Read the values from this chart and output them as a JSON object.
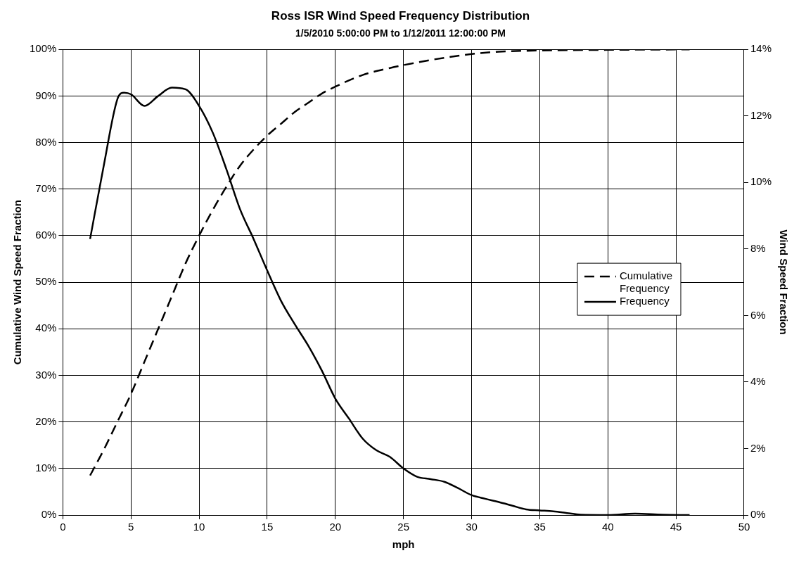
{
  "chart_data": {
    "type": "line",
    "title": "Ross ISR Wind Speed Frequency Distribution",
    "subtitle": "1/5/2010 5:00:00 PM to 1/12/2011 12:00:00 PM",
    "xlabel": "mph",
    "ylabel": "Cumulative Wind Speed Fraction",
    "y2label": "Wind Speed Fraction",
    "xlim": [
      0,
      50
    ],
    "xticks": [
      0,
      5,
      10,
      15,
      20,
      25,
      30,
      35,
      40,
      45,
      50
    ],
    "ylim": [
      0,
      100
    ],
    "yticks": [
      {
        "value": 0,
        "label": "0%"
      },
      {
        "value": 10,
        "label": "10%"
      },
      {
        "value": 20,
        "label": "20%"
      },
      {
        "value": 30,
        "label": "30%"
      },
      {
        "value": 40,
        "label": "40%"
      },
      {
        "value": 50,
        "label": "50%"
      },
      {
        "value": 60,
        "label": "60%"
      },
      {
        "value": 70,
        "label": "70%"
      },
      {
        "value": 80,
        "label": "80%"
      },
      {
        "value": 90,
        "label": "90%"
      },
      {
        "value": 100,
        "label": "100%"
      }
    ],
    "y2lim": [
      0,
      14
    ],
    "y2ticks": [
      {
        "value": 0,
        "label": "0%"
      },
      {
        "value": 2,
        "label": "2%"
      },
      {
        "value": 4,
        "label": "4%"
      },
      {
        "value": 6,
        "label": "6%"
      },
      {
        "value": 8,
        "label": "8%"
      },
      {
        "value": 10,
        "label": "10%"
      },
      {
        "value": 12,
        "label": "12%"
      },
      {
        "value": 14,
        "label": "14%"
      }
    ],
    "grid": true,
    "legend": "right",
    "series": [
      {
        "name": "Cumulative Frequency",
        "color": "#000000",
        "line_style": "dashed",
        "x": [
          2,
          3,
          4,
          5,
          6,
          7,
          8,
          9,
          10,
          11,
          12,
          13,
          14,
          15,
          16,
          17,
          18,
          19,
          20,
          22,
          24,
          26,
          28,
          30,
          32,
          34,
          36,
          40,
          46
        ],
        "values": [
          8.5,
          14,
          20,
          26,
          33,
          40,
          47,
          54,
          60,
          65.5,
          70.5,
          75,
          78.5,
          81.5,
          84,
          86.5,
          88.5,
          90.5,
          92,
          94.5,
          96,
          97.2,
          98.2,
          99,
          99.5,
          99.7,
          99.8,
          99.9,
          100
        ]
      },
      {
        "name": "Frequency",
        "color": "#000000",
        "line_style": "solid",
        "axis": "y2",
        "x": [
          2,
          3,
          4,
          4.5,
          5,
          6,
          7,
          8,
          9,
          10,
          11,
          12,
          13,
          14,
          15,
          16,
          17,
          18,
          19,
          20,
          21,
          22,
          23,
          24,
          25,
          26,
          27,
          28,
          29,
          30,
          31,
          32,
          33,
          34,
          35,
          36,
          37,
          38,
          40,
          42,
          44,
          46
        ],
        "values": [
          8.3,
          10.5,
          12.5,
          12.7,
          12.65,
          12.3,
          12.6,
          12.85,
          12.8,
          12.3,
          11.5,
          10.4,
          9.2,
          8.3,
          7.35,
          6.45,
          5.75,
          5.1,
          4.35,
          3.5,
          2.9,
          2.3,
          1.95,
          1.75,
          1.4,
          1.15,
          1.08,
          1.0,
          0.81,
          0.6,
          0.49,
          0.39,
          0.28,
          0.17,
          0.14,
          0.11,
          0.06,
          0.01,
          0,
          0.04,
          0.01,
          0
        ]
      }
    ]
  }
}
